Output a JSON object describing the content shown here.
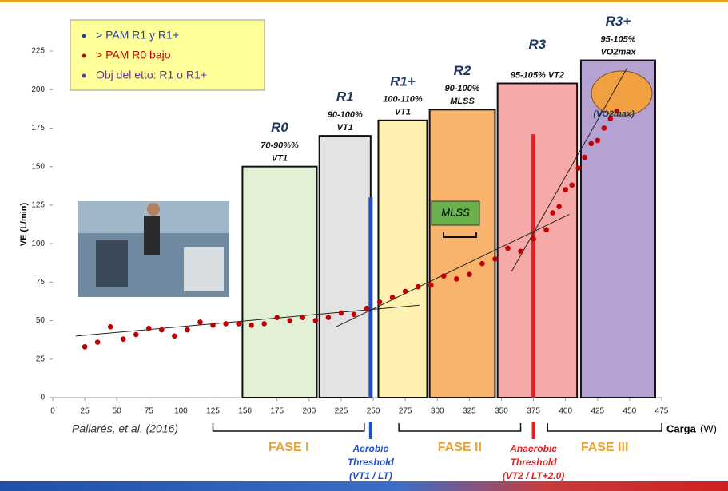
{
  "chart_data": {
    "type": "scatter",
    "y_label": "VE (L/min)",
    "x_label": "Carga",
    "x_unit": "(W)",
    "citation": "Pallarés, et al. (2016)",
    "xlim": [
      0,
      475
    ],
    "xticks": [
      0,
      25,
      50,
      75,
      100,
      125,
      150,
      175,
      200,
      225,
      250,
      275,
      300,
      325,
      350,
      375,
      400,
      425,
      450,
      475
    ],
    "ylim": [
      0,
      225
    ],
    "yticks": [
      0,
      25,
      50,
      75,
      100,
      125,
      150,
      175,
      200,
      225
    ],
    "color": "#c00000",
    "x": [
      25,
      35,
      45,
      55,
      65,
      75,
      85,
      95,
      105,
      115,
      125,
      135,
      145,
      155,
      165,
      175,
      185,
      195,
      205,
      215,
      225,
      235,
      245,
      255,
      265,
      275,
      285,
      295,
      305,
      315,
      325,
      335,
      345,
      355,
      365,
      375,
      385,
      390,
      395,
      400,
      405,
      410,
      415,
      420,
      425,
      430,
      435,
      440
    ],
    "values": [
      33,
      36,
      46,
      38,
      41,
      45,
      44,
      40,
      44,
      49,
      47,
      48,
      48,
      47,
      48,
      52,
      50,
      52,
      50,
      52,
      55,
      54,
      58,
      62,
      65,
      69,
      72,
      73,
      79,
      77,
      80,
      87,
      90,
      97,
      95,
      103,
      109,
      120,
      124,
      135,
      138,
      149,
      156,
      165,
      167,
      175,
      181,
      186
    ],
    "zones": [
      {
        "name": "R0",
        "lines": [
          "70-90%%",
          "VT1"
        ],
        "x0": 148,
        "x1": 206,
        "top": 150,
        "color": "#e2f0d6"
      },
      {
        "name": "R1",
        "lines": [
          "90-100%",
          "VT1"
        ],
        "x0": 208,
        "x1": 248,
        "top": 170,
        "color": "#e3e3e3"
      },
      {
        "name": "R1+",
        "lines": [
          "100-110%",
          "VT1"
        ],
        "x0": 254,
        "x1": 292,
        "top": 180,
        "color": "#fff1b0"
      },
      {
        "name": "R2",
        "lines": [
          "90-100%",
          "MLSS"
        ],
        "x0": 294,
        "x1": 345,
        "top": 187,
        "color": "#f8b46c"
      },
      {
        "name": "R3",
        "lines": [
          "95-105% VT2"
        ],
        "x0": 347,
        "x1": 409,
        "top": 204,
        "color": "#f5a9a9"
      },
      {
        "name": "R3+",
        "lines": [
          "95-105%",
          "VO2max"
        ],
        "x0": 412,
        "x1": 470,
        "top": 219,
        "color": "#b6a2d2"
      }
    ],
    "thresholds": [
      {
        "x": 248,
        "top": 130,
        "color": "#1f4fc8",
        "lines": [
          "Aerobic",
          "Threshold",
          "(VT1 / LT)"
        ]
      },
      {
        "x": 375,
        "top": 171,
        "color": "#e32020",
        "lines": [
          "Anaerobic",
          "Threshold",
          "(VT2 / LT+2.0)"
        ]
      }
    ],
    "trend_lines": [
      {
        "x": [
          18,
          286
        ],
        "y": [
          40,
          60
        ]
      },
      {
        "x": [
          221,
          403
        ],
        "y": [
          46,
          119
        ]
      },
      {
        "x": [
          358,
          448
        ],
        "y": [
          82,
          214
        ]
      }
    ],
    "phases": [
      {
        "label": "FASE I",
        "x0": 125,
        "x1": 243
      },
      {
        "label": "FASE II",
        "x0": 270,
        "x1": 365
      },
      {
        "label": "FASE III",
        "x0": 386,
        "x1": 475
      }
    ],
    "legend_items": [
      {
        "text": "> PAM R1 y R1+",
        "color": "#1f3fbf"
      },
      {
        "text": "> PAM R0 bajo",
        "color": "#c00000"
      },
      {
        "text": "Obj del etto: R1 o R1+",
        "color": "#7030a0"
      }
    ],
    "mlss_box": "MLSS",
    "vo2max_note": "(VO2max)"
  }
}
